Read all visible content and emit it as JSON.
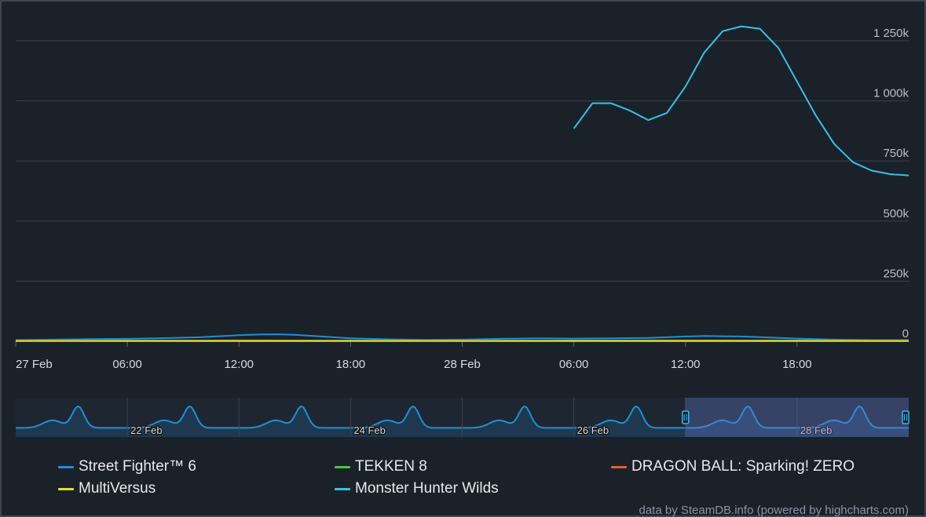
{
  "chart_data": {
    "type": "line",
    "title": "",
    "xlabel": "",
    "ylabel": "",
    "y_ticks": [
      "0",
      "250k",
      "500k",
      "750k",
      "1 000k",
      "1 250k"
    ],
    "y_tick_values": [
      0,
      250000,
      500000,
      750000,
      1000000,
      1250000
    ],
    "ylim": [
      0,
      1400000
    ],
    "x_ticks": [
      "27 Feb",
      "06:00",
      "12:00",
      "18:00",
      "28 Feb",
      "06:00",
      "12:00",
      "18:00"
    ],
    "x_range_hours": [
      0,
      48
    ],
    "grid": true,
    "legend_position": "bottom",
    "series": [
      {
        "name": "Street Fighter™ 6",
        "color": "#1f8fd6",
        "x_hours": [
          0,
          2,
          4,
          6,
          8,
          10,
          12,
          13,
          14,
          15,
          16,
          18,
          20,
          22,
          24,
          26,
          28,
          30,
          32,
          34,
          36,
          37,
          38,
          39,
          40,
          42,
          44,
          46,
          48
        ],
        "values": [
          5000,
          7000,
          9000,
          10000,
          13000,
          17000,
          25000,
          28000,
          29000,
          27000,
          22000,
          12000,
          8000,
          6000,
          7000,
          10000,
          12000,
          11000,
          12000,
          14000,
          20000,
          22000,
          21000,
          20000,
          17000,
          11000,
          7000,
          5000,
          5000
        ]
      },
      {
        "name": "TEKKEN 8",
        "color": "#4cc14c",
        "x_hours": [
          0,
          12,
          24,
          36,
          48
        ],
        "values": [
          2500,
          3500,
          2500,
          3500,
          2500
        ]
      },
      {
        "name": "DRAGON BALL: Sparking! ZERO",
        "color": "#e0612f",
        "x_hours": [
          0,
          12,
          24,
          36,
          48
        ],
        "values": [
          1500,
          2000,
          1500,
          2000,
          1500
        ]
      },
      {
        "name": "MultiVersus",
        "color": "#e3de2e",
        "x_hours": [
          0,
          12,
          24,
          36,
          48
        ],
        "values": [
          1000,
          1000,
          1000,
          1000,
          1000
        ]
      },
      {
        "name": "Monster Hunter Wilds",
        "color": "#32c3e6",
        "x_hours": [
          30,
          31,
          32,
          33,
          34,
          35,
          36,
          37,
          38,
          39,
          40,
          41,
          42,
          43,
          44,
          45,
          46,
          47,
          48
        ],
        "values": [
          885000,
          990000,
          990000,
          960000,
          920000,
          950000,
          1060000,
          1200000,
          1290000,
          1310000,
          1300000,
          1220000,
          1080000,
          940000,
          820000,
          745000,
          710000,
          695000,
          690000
        ]
      }
    ],
    "navigator": {
      "labels": [
        "22 Feb",
        "24 Feb",
        "26 Feb",
        "28 Feb"
      ],
      "selection_fraction": [
        0.75,
        1.0
      ]
    }
  },
  "credits": "data by SteamDB.info (powered by highcharts.com)"
}
